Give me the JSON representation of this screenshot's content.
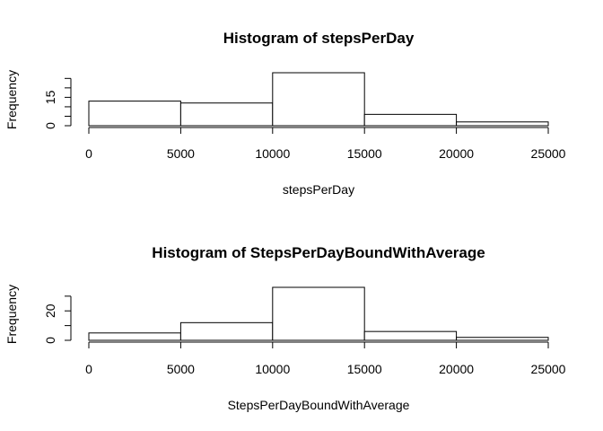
{
  "chart_data": [
    {
      "type": "bar",
      "title": "Histogram of stepsPerDay",
      "xlabel": "stepsPerDay",
      "ylabel": "Frequency",
      "bins": [
        [
          0,
          5000
        ],
        [
          5000,
          10000
        ],
        [
          10000,
          15000
        ],
        [
          15000,
          20000
        ],
        [
          20000,
          25000
        ]
      ],
      "values": [
        13,
        12,
        28,
        6,
        2
      ],
      "xlim": [
        0,
        25000
      ],
      "ylim": [
        0,
        28
      ],
      "x_ticks": [
        0,
        5000,
        10000,
        15000,
        20000,
        25000
      ],
      "y_ticks": [
        0,
        5,
        10,
        15,
        20,
        25
      ],
      "y_tick_labels": [
        "0",
        "",
        "",
        "15",
        "",
        ""
      ],
      "grid": false
    },
    {
      "type": "bar",
      "title": "Histogram of StepsPerDayBoundWithAverage",
      "xlabel": "StepsPerDayBoundWithAverage",
      "ylabel": "Frequency",
      "bins": [
        [
          0,
          5000
        ],
        [
          5000,
          10000
        ],
        [
          10000,
          15000
        ],
        [
          15000,
          20000
        ],
        [
          20000,
          25000
        ]
      ],
      "values": [
        5,
        12,
        36,
        6,
        2
      ],
      "xlim": [
        0,
        25000
      ],
      "ylim": [
        0,
        36
      ],
      "x_ticks": [
        0,
        5000,
        10000,
        15000,
        20000,
        25000
      ],
      "y_ticks": [
        0,
        10,
        20,
        30
      ],
      "y_tick_labels": [
        "0",
        "",
        "20",
        ""
      ],
      "grid": false
    }
  ]
}
